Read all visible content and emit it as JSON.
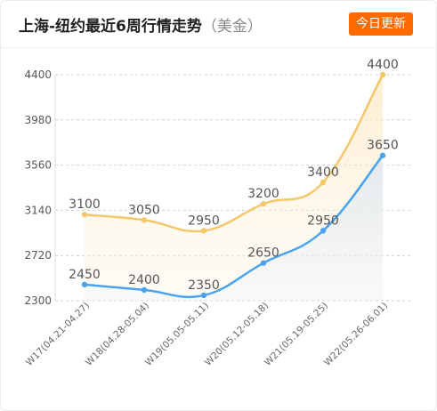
{
  "header": {
    "title": "上海-纽约最近6周行情走势",
    "unit": "（美金）",
    "badge": "今日更新"
  },
  "colors": {
    "series_top": "#f5c76a",
    "series_bottom": "#4ba3ee",
    "badge": "#ff6a00"
  },
  "chart_data": {
    "type": "line",
    "title": "上海-纽约最近6周行情走势（美金）",
    "categories": [
      "W17(04.21-04.27)",
      "W18(04.28-05.04)",
      "W19(05.05-05.11)",
      "W20(05.12-05.18)",
      "W21(05.19-05.25)",
      "W22(05.26-06.01)"
    ],
    "series": [
      {
        "values": [
          3100,
          3050,
          2950,
          3200,
          3400,
          4400
        ],
        "color": "#f5c76a"
      },
      {
        "values": [
          2450,
          2400,
          2350,
          2650,
          2950,
          3650
        ],
        "color": "#4ba3ee"
      }
    ],
    "ylim": [
      2300,
      4400
    ],
    "yticks": [
      2300,
      2720,
      3140,
      3560,
      3980,
      4400
    ],
    "grid": true,
    "smooth": true,
    "area_fill": true
  }
}
